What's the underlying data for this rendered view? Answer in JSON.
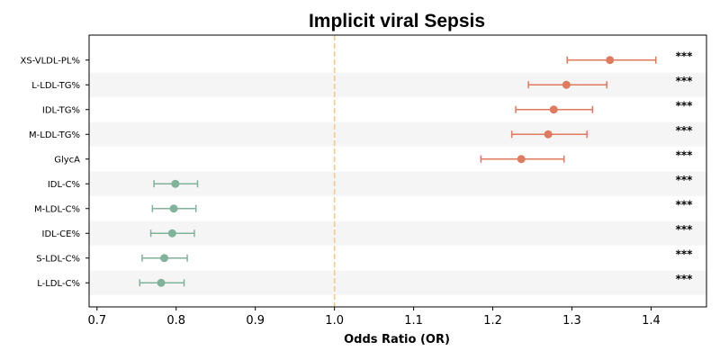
{
  "chart_data": {
    "type": "forest",
    "title": "Implicit viral Sepsis",
    "xlabel": "Odds Ratio (OR)",
    "ylabel": "",
    "xlim": [
      0.69,
      1.47
    ],
    "xticks": [
      0.7,
      0.8,
      0.9,
      1.0,
      1.1,
      1.2,
      1.3,
      1.4
    ],
    "xtick_labels": [
      "0.7",
      "0.8",
      "0.9",
      "1.0",
      "1.1",
      "1.2",
      "1.3",
      "1.4"
    ],
    "reference_line": 1.0,
    "reference_color": "#f5c98a",
    "increase_color": "#e07a5f",
    "decrease_color": "#81b29a",
    "band_color": "#f5f5f5",
    "significance": "***",
    "rows": [
      {
        "label": "XS-VLDL-PL%",
        "or": 1.348,
        "low": 1.294,
        "high": 1.406
      },
      {
        "label": "L-LDL-TG%",
        "or": 1.293,
        "low": 1.245,
        "high": 1.344
      },
      {
        "label": "IDL-TG%",
        "or": 1.277,
        "low": 1.229,
        "high": 1.326
      },
      {
        "label": "M-LDL-TG%",
        "or": 1.27,
        "low": 1.224,
        "high": 1.319
      },
      {
        "label": "GlycA",
        "or": 1.236,
        "low": 1.185,
        "high": 1.29
      },
      {
        "label": "IDL-C%",
        "or": 0.799,
        "low": 0.772,
        "high": 0.827
      },
      {
        "label": "M-LDL-C%",
        "or": 0.797,
        "low": 0.77,
        "high": 0.825
      },
      {
        "label": "IDL-CE%",
        "or": 0.795,
        "low": 0.768,
        "high": 0.823
      },
      {
        "label": "S-LDL-C%",
        "or": 0.785,
        "low": 0.757,
        "high": 0.814
      },
      {
        "label": "L-LDL-C%",
        "or": 0.781,
        "low": 0.754,
        "high": 0.81
      }
    ]
  }
}
